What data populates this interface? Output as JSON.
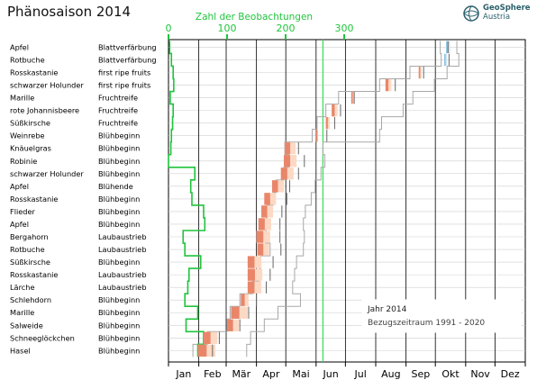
{
  "title": "Phänosaison 2014",
  "logo": {
    "line1": "GeoSphere",
    "line2": "Austria"
  },
  "chart_data": {
    "type": "phenology-timeline",
    "title": "Phänosaison 2014",
    "top_axis": {
      "label": "Zahl der Beobachtungen",
      "ticks": [
        0,
        100,
        200,
        300
      ],
      "color": "#1fc43c"
    },
    "months": [
      "Jan",
      "Feb",
      "Mär",
      "Apr",
      "Mai",
      "Jun",
      "Jul",
      "Aug",
      "Sep",
      "Okt",
      "Nov",
      "Dez"
    ],
    "today_line_doy": 158,
    "legend": {
      "year": "Jahr 2014",
      "reference": "Bezugszeitraum 1991 - 2020"
    },
    "rows": [
      {
        "plant": "Apfel",
        "phase": "Blattverfärbung",
        "count": 2,
        "ref_start": 278,
        "ref_end": 295,
        "ref_median": 286,
        "obs_start": 284,
        "obs_end": 288
      },
      {
        "plant": "Rotbuche",
        "phase": "Blattverfärbung",
        "count": 5,
        "ref_start": 279,
        "ref_end": 297,
        "ref_median": 287,
        "obs_start": 282,
        "obs_end": 285
      },
      {
        "plant": "Rosskastanie",
        "phase": "first ripe fruits",
        "count": 8,
        "ref_start": 247,
        "ref_end": 285,
        "ref_median": 261,
        "obs_start": 256,
        "obs_end": 259
      },
      {
        "plant": "schwarzer Holunder",
        "phase": "first ripe fruits",
        "count": 9,
        "ref_start": 216,
        "ref_end": 272,
        "ref_median": 232,
        "obs_start": 222,
        "obs_end": 228
      },
      {
        "plant": "Marille",
        "phase": "Fruchtreife",
        "count": 3,
        "ref_start": 174,
        "ref_end": 250,
        "ref_median": 190,
        "obs_start": 187,
        "obs_end": 190
      },
      {
        "plant": "rote Johannisbeere",
        "phase": "Fruchtreife",
        "count": 8,
        "ref_start": 161,
        "ref_end": 240,
        "ref_median": 176,
        "obs_start": 167,
        "obs_end": 173
      },
      {
        "plant": "Süßkirsche",
        "phase": "Fruchtreife",
        "count": 7,
        "ref_start": 152,
        "ref_end": 218,
        "ref_median": 170,
        "obs_start": 161,
        "obs_end": 165
      },
      {
        "plant": "Weinrebe",
        "phase": "Blühbeginn",
        "count": 5,
        "ref_start": 147,
        "ref_end": 216,
        "ref_median": 162,
        "obs_start": 151,
        "obs_end": 153
      },
      {
        "plant": "Knäuelgras",
        "phase": "Blühbeginn",
        "count": 4,
        "ref_start": 119,
        "ref_end": 158,
        "ref_median": 133,
        "obs_start": 119,
        "obs_end": 130
      },
      {
        "plant": "Robinie",
        "phase": "Blühbeginn",
        "count": 0,
        "ref_start": 123,
        "ref_end": 160,
        "ref_median": 139,
        "obs_start": 118,
        "obs_end": 131
      },
      {
        "plant": "schwarzer Holunder",
        "phase": "Blühbeginn",
        "count": 45,
        "ref_start": 118,
        "ref_end": 156,
        "ref_median": 133,
        "obs_start": 115,
        "obs_end": 128
      },
      {
        "plant": "Apfel",
        "phase": "Blühende",
        "count": 38,
        "ref_start": 110,
        "ref_end": 150,
        "ref_median": 124,
        "obs_start": 106,
        "obs_end": 118
      },
      {
        "plant": "Rosskastanie",
        "phase": "Blühbeginn",
        "count": 40,
        "ref_start": 107,
        "ref_end": 146,
        "ref_median": 121,
        "obs_start": 98,
        "obs_end": 110
      },
      {
        "plant": "Flieder",
        "phase": "Blühbeginn",
        "count": 60,
        "ref_start": 101,
        "ref_end": 140,
        "ref_median": 116,
        "obs_start": 95,
        "obs_end": 107
      },
      {
        "plant": "Apfel",
        "phase": "Blühbeginn",
        "count": 62,
        "ref_start": 100,
        "ref_end": 138,
        "ref_median": 114,
        "obs_start": 92,
        "obs_end": 105
      },
      {
        "plant": "Bergahorn",
        "phase": "Laubaustrieb",
        "count": 25,
        "ref_start": 99,
        "ref_end": 139,
        "ref_median": 114,
        "obs_start": 90,
        "obs_end": 104
      },
      {
        "plant": "Rotbuche",
        "phase": "Laubaustrieb",
        "count": 28,
        "ref_start": 104,
        "ref_end": 138,
        "ref_median": 115,
        "obs_start": 91,
        "obs_end": 103
      },
      {
        "plant": "Süßkirsche",
        "phase": "Blühbeginn",
        "count": 55,
        "ref_start": 94,
        "ref_end": 131,
        "ref_median": 107,
        "obs_start": 81,
        "obs_end": 95
      },
      {
        "plant": "Rosskastanie",
        "phase": "Laubaustrieb",
        "count": 35,
        "ref_start": 93,
        "ref_end": 129,
        "ref_median": 104,
        "obs_start": 81,
        "obs_end": 96
      },
      {
        "plant": "Lärche",
        "phase": "Laubaustrieb",
        "count": 33,
        "ref_start": 86,
        "ref_end": 127,
        "ref_median": 100,
        "obs_start": 81,
        "obs_end": 95
      },
      {
        "plant": "Schlehdorn",
        "phase": "Blühbeginn",
        "count": 28,
        "ref_start": 73,
        "ref_end": 135,
        "ref_median": 90,
        "obs_start": 74,
        "obs_end": 82
      },
      {
        "plant": "Marille",
        "phase": "Blühbeginn",
        "count": 50,
        "ref_start": 63,
        "ref_end": 112,
        "ref_median": 82,
        "obs_start": 64,
        "obs_end": 81
      },
      {
        "plant": "Salweide",
        "phase": "Blühbeginn",
        "count": 30,
        "ref_start": 60,
        "ref_end": 98,
        "ref_median": 73,
        "obs_start": 60,
        "obs_end": 72
      },
      {
        "plant": "Schneeglöckchen",
        "phase": "Blühbeginn",
        "count": 60,
        "ref_start": 40,
        "ref_end": 84,
        "ref_median": 52,
        "obs_start": 36,
        "obs_end": 50
      },
      {
        "plant": "Hasel",
        "phase": "Blühbeginn",
        "count": 50,
        "ref_start": 25,
        "ref_end": 80,
        "ref_median": 45,
        "obs_start": 30,
        "obs_end": 48
      }
    ]
  }
}
